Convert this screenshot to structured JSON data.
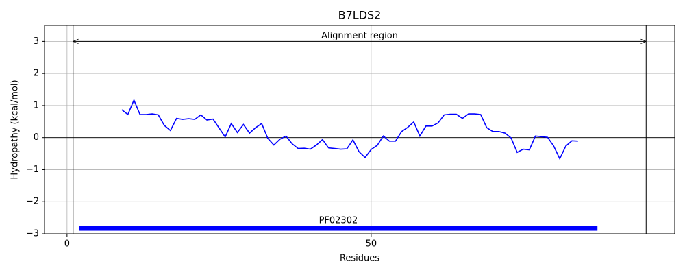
{
  "chart_data": {
    "type": "line",
    "title": "B7LDS2",
    "xlabel": "Residues",
    "ylabel": "Hydropathy (kcal/mol)",
    "x": [
      9,
      10,
      11,
      12,
      13,
      14,
      15,
      16,
      17,
      18,
      19,
      20,
      21,
      22,
      23,
      24,
      25,
      26,
      27,
      28,
      29,
      30,
      31,
      32,
      33,
      34,
      35,
      36,
      37,
      38,
      39,
      40,
      41,
      42,
      43,
      44,
      45,
      46,
      47,
      48,
      49,
      50,
      51,
      52,
      53,
      54,
      55,
      56,
      57,
      58,
      59,
      60,
      61,
      62,
      63,
      64,
      65,
      66,
      67,
      68,
      69,
      70,
      71,
      72,
      73,
      74,
      75,
      76,
      77,
      78,
      79,
      80,
      81,
      82,
      83,
      84
    ],
    "values": [
      0.87,
      0.72,
      1.17,
      0.72,
      0.72,
      0.74,
      0.71,
      0.38,
      0.22,
      0.6,
      0.57,
      0.59,
      0.57,
      0.71,
      0.55,
      0.58,
      0.3,
      0.02,
      0.44,
      0.16,
      0.41,
      0.14,
      0.31,
      0.44,
      -0.02,
      -0.23,
      -0.05,
      0.05,
      -0.19,
      -0.34,
      -0.33,
      -0.36,
      -0.23,
      -0.06,
      -0.32,
      -0.34,
      -0.36,
      -0.35,
      -0.07,
      -0.44,
      -0.62,
      -0.37,
      -0.24,
      0.05,
      -0.11,
      -0.11,
      0.19,
      0.32,
      0.49,
      0.05,
      0.36,
      0.36,
      0.46,
      0.71,
      0.73,
      0.73,
      0.6,
      0.74,
      0.74,
      0.72,
      0.31,
      0.19,
      0.19,
      0.14,
      -0.01,
      -0.46,
      -0.36,
      -0.38,
      0.05,
      0.03,
      0.01,
      -0.26,
      -0.66,
      -0.26,
      -0.1,
      -0.11
    ],
    "color": "#0000ff",
    "xlim": [
      -3.7,
      99.9
    ],
    "ylim": [
      -3,
      3.5
    ],
    "xticks": [
      0,
      50
    ],
    "yticks": [
      {
        "value": -3,
        "label": "−3"
      },
      {
        "value": -2,
        "label": "−2"
      },
      {
        "value": -1,
        "label": "−1"
      },
      0,
      1,
      2,
      3
    ],
    "grid": true,
    "hlines": [
      0
    ],
    "region": {
      "text": "Alignment region",
      "start": 1,
      "end": 95.2,
      "y": 3
    },
    "domains": [
      {
        "label": "PF02302",
        "start": 2,
        "end": 87.2,
        "y": -2.83,
        "color": "#0000ff"
      }
    ]
  }
}
